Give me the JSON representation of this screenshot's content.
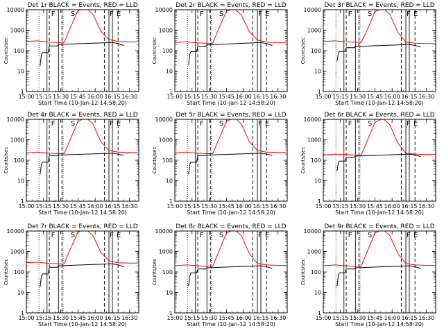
{
  "common": {
    "xlabel": "Start Time (10-Jan-12 14:58:20)",
    "ylabel": "Counts/sec",
    "xtick_labels": [
      "15:00",
      "15:15",
      "15:30",
      "15:45",
      "16:00",
      "16:15",
      "16:30"
    ],
    "ytick_labels": [
      "1",
      "10",
      "100",
      "1000",
      "10000"
    ],
    "markers": [
      "F",
      "S",
      "F",
      "E"
    ]
  },
  "colors": {
    "events": "#000000",
    "lld": "#ff0000",
    "axes": "#000000",
    "background": "#ffffff"
  },
  "chart_data": [
    {
      "type": "line",
      "title": "Det 1r BLACK = Events, RED = LLD",
      "xlabel": "Start Time (10-Jan-12 14:58:20)",
      "ylabel": "Counts/sec",
      "ylog": true,
      "xlim": [
        "15:00",
        "16:38"
      ],
      "ylim": [
        1,
        10000
      ],
      "series": [
        {
          "name": "Events",
          "color": "#000000",
          "x": [
            "15:12",
            "15:13",
            "15:14",
            "15:19",
            "15:20",
            "15:27",
            "15:28",
            "16:15",
            "16:20",
            "16:25"
          ],
          "y": [
            18,
            60,
            80,
            80,
            170,
            170,
            200,
            250,
            220,
            180
          ]
        },
        {
          "name": "LLD",
          "color": "#ff0000",
          "x": [
            "15:00",
            "15:10",
            "15:20",
            "15:28",
            "15:33",
            "15:37",
            "15:45",
            "15:52",
            "15:58",
            "16:05",
            "16:12",
            "16:20",
            "16:30",
            "16:37"
          ],
          "y": [
            280,
            300,
            260,
            250,
            250,
            900,
            9000,
            12000,
            6000,
            900,
            350,
            280,
            270,
            270
          ]
        }
      ]
    },
    {
      "type": "line",
      "title": "Det 2r BLACK = Events, RED = LLD",
      "xlabel": "Start Time (10-Jan-12 14:58:20)",
      "ylabel": "Counts/sec",
      "ylog": true,
      "xlim": [
        "15:00",
        "16:38"
      ],
      "ylim": [
        1,
        10000
      ],
      "series": [
        {
          "name": "Events",
          "color": "#000000",
          "x": [
            "15:12",
            "15:13",
            "15:14",
            "15:19",
            "15:20",
            "15:27",
            "15:28",
            "16:15",
            "16:20",
            "16:25"
          ],
          "y": [
            20,
            65,
            90,
            90,
            160,
            160,
            190,
            250,
            220,
            180
          ]
        },
        {
          "name": "LLD",
          "color": "#ff0000",
          "x": [
            "15:00",
            "15:10",
            "15:20",
            "15:28",
            "15:33",
            "15:37",
            "15:45",
            "15:52",
            "15:58",
            "16:05",
            "16:12",
            "16:20",
            "16:30",
            "16:37"
          ],
          "y": [
            250,
            270,
            240,
            230,
            230,
            800,
            8500,
            11000,
            5500,
            850,
            330,
            260,
            250,
            250
          ]
        }
      ]
    },
    {
      "type": "line",
      "title": "Det 3r BLACK = Events, RED = LLD",
      "xlabel": "Start Time (10-Jan-12 14:58:20)",
      "ylabel": "Counts/sec",
      "ylog": true,
      "xlim": [
        "15:00",
        "16:38"
      ],
      "ylim": [
        1,
        10000
      ],
      "series": [
        {
          "name": "Events",
          "color": "#000000",
          "x": [
            "15:12",
            "15:13",
            "15:14",
            "15:19",
            "15:20",
            "15:27",
            "15:28",
            "16:15",
            "16:20",
            "16:25"
          ],
          "y": [
            30,
            70,
            90,
            90,
            140,
            140,
            160,
            200,
            180,
            150
          ]
        },
        {
          "name": "LLD",
          "color": "#ff0000",
          "x": [
            "15:00",
            "15:10",
            "15:20",
            "15:28",
            "15:33",
            "15:37",
            "15:45",
            "15:52",
            "15:58",
            "16:05",
            "16:12",
            "16:20",
            "16:30",
            "16:37"
          ],
          "y": [
            280,
            300,
            270,
            260,
            250,
            700,
            8000,
            12000,
            6000,
            800,
            260,
            230,
            220,
            220
          ]
        }
      ]
    },
    {
      "type": "line",
      "title": "Det 4r BLACK = Events, RED = LLD",
      "xlabel": "Start Time (10-Jan-12 14:58:20)",
      "ylabel": "Counts/sec",
      "ylog": true,
      "xlim": [
        "15:00",
        "16:38"
      ],
      "ylim": [
        1,
        10000
      ],
      "series": [
        {
          "name": "Events",
          "color": "#000000",
          "x": [
            "15:12",
            "15:13",
            "15:14",
            "15:19",
            "15:20",
            "15:27",
            "15:28",
            "16:15",
            "16:20",
            "16:25"
          ],
          "y": [
            20,
            60,
            80,
            80,
            170,
            170,
            180,
            220,
            200,
            170
          ]
        },
        {
          "name": "LLD",
          "color": "#ff0000",
          "x": [
            "15:00",
            "15:10",
            "15:20",
            "15:28",
            "15:33",
            "15:37",
            "15:45",
            "15:52",
            "15:58",
            "16:05",
            "16:12",
            "16:20",
            "16:30",
            "16:37"
          ],
          "y": [
            230,
            250,
            220,
            210,
            210,
            700,
            8000,
            12000,
            6000,
            800,
            300,
            250,
            240,
            240
          ]
        }
      ]
    },
    {
      "type": "line",
      "title": "Det 5r BLACK = Events, RED = LLD",
      "xlabel": "Start Time (10-Jan-12 14:58:20)",
      "ylabel": "Counts/sec",
      "ylog": true,
      "xlim": [
        "15:00",
        "16:38"
      ],
      "ylim": [
        1,
        10000
      ],
      "series": [
        {
          "name": "Events",
          "color": "#000000",
          "x": [
            "15:12",
            "15:13",
            "15:14",
            "15:19",
            "15:20",
            "15:27",
            "15:28",
            "16:15",
            "16:20",
            "16:25"
          ],
          "y": [
            20,
            60,
            80,
            80,
            170,
            170,
            180,
            220,
            200,
            170
          ]
        },
        {
          "name": "LLD",
          "color": "#ff0000",
          "x": [
            "15:00",
            "15:10",
            "15:20",
            "15:28",
            "15:33",
            "15:37",
            "15:45",
            "15:52",
            "15:58",
            "16:05",
            "16:12",
            "16:20",
            "16:30",
            "16:37"
          ],
          "y": [
            230,
            250,
            220,
            210,
            210,
            700,
            8000,
            12000,
            6000,
            800,
            300,
            250,
            240,
            240
          ]
        }
      ]
    },
    {
      "type": "line",
      "title": "Det 6r BLACK = Events, RED = LLD",
      "xlabel": "Start Time (10-Jan-12 14:58:20)",
      "ylabel": "Counts/sec",
      "ylog": true,
      "xlim": [
        "15:00",
        "16:38"
      ],
      "ylim": [
        1,
        10000
      ],
      "series": [
        {
          "name": "Events",
          "color": "#000000",
          "x": [
            "15:12",
            "15:13",
            "15:14",
            "15:19",
            "15:20",
            "15:27",
            "15:28",
            "16:15",
            "16:20",
            "16:25"
          ],
          "y": [
            30,
            70,
            90,
            90,
            140,
            140,
            160,
            200,
            180,
            150
          ]
        },
        {
          "name": "LLD",
          "color": "#ff0000",
          "x": [
            "15:00",
            "15:10",
            "15:20",
            "15:28",
            "15:33",
            "15:37",
            "15:45",
            "15:52",
            "15:58",
            "16:05",
            "16:12",
            "16:20",
            "16:30",
            "16:37"
          ],
          "y": [
            180,
            200,
            190,
            180,
            180,
            600,
            7000,
            11000,
            5500,
            700,
            220,
            200,
            190,
            190
          ]
        }
      ]
    },
    {
      "type": "line",
      "title": "Det 7r BLACK = Events, RED = LLD",
      "xlabel": "Start Time (10-Jan-12 14:58:20)",
      "ylabel": "Counts/sec",
      "ylog": true,
      "xlim": [
        "15:00",
        "16:38"
      ],
      "ylim": [
        1,
        10000
      ],
      "series": [
        {
          "name": "Events",
          "color": "#000000",
          "x": [
            "15:12",
            "15:13",
            "15:14",
            "15:19",
            "15:20",
            "15:27",
            "15:28",
            "16:15",
            "16:20",
            "16:25"
          ],
          "y": [
            18,
            60,
            80,
            80,
            170,
            170,
            200,
            250,
            220,
            180
          ]
        },
        {
          "name": "LLD",
          "color": "#ff0000",
          "x": [
            "15:00",
            "15:10",
            "15:20",
            "15:28",
            "15:33",
            "15:37",
            "15:45",
            "15:52",
            "15:58",
            "16:05",
            "16:12",
            "16:20",
            "16:30",
            "16:37"
          ],
          "y": [
            280,
            300,
            260,
            250,
            250,
            900,
            9000,
            12000,
            6000,
            900,
            350,
            280,
            270,
            270
          ]
        }
      ]
    },
    {
      "type": "line",
      "title": "Det 8r BLACK = Events, RED = LLD",
      "xlabel": "Start Time (10-Jan-12 14:58:20)",
      "ylabel": "Counts/sec",
      "ylog": true,
      "xlim": [
        "15:00",
        "16:38"
      ],
      "ylim": [
        1,
        10000
      ],
      "series": [
        {
          "name": "Events",
          "color": "#000000",
          "x": [
            "15:12",
            "15:13",
            "15:14",
            "15:19",
            "15:20",
            "15:27",
            "15:28",
            "16:15",
            "16:20",
            "16:25"
          ],
          "y": [
            20,
            60,
            90,
            90,
            140,
            140,
            160,
            200,
            180,
            150
          ]
        },
        {
          "name": "LLD",
          "color": "#ff0000",
          "x": [
            "15:00",
            "15:10",
            "15:20",
            "15:28",
            "15:33",
            "15:37",
            "15:45",
            "15:52",
            "15:58",
            "16:05",
            "16:12",
            "16:20",
            "16:30",
            "16:37"
          ],
          "y": [
            200,
            220,
            200,
            190,
            190,
            650,
            8000,
            12000,
            6000,
            800,
            260,
            220,
            210,
            210
          ]
        }
      ]
    },
    {
      "type": "line",
      "title": "Det 9r BLACK = Events, RED = LLD",
      "xlabel": "Start Time (10-Jan-12 14:58:20)",
      "ylabel": "Counts/sec",
      "ylog": true,
      "xlim": [
        "15:00",
        "16:38"
      ],
      "ylim": [
        1,
        10000
      ],
      "series": [
        {
          "name": "Events",
          "color": "#000000",
          "x": [
            "15:12",
            "15:13",
            "15:14",
            "15:19",
            "15:20",
            "15:27",
            "15:28",
            "16:15",
            "16:20",
            "16:25"
          ],
          "y": [
            20,
            60,
            90,
            90,
            140,
            140,
            160,
            200,
            180,
            150
          ]
        },
        {
          "name": "LLD",
          "color": "#ff0000",
          "x": [
            "15:00",
            "15:10",
            "15:20",
            "15:28",
            "15:33",
            "15:37",
            "15:45",
            "15:52",
            "15:58",
            "16:05",
            "16:12",
            "16:20",
            "16:30",
            "16:37"
          ],
          "y": [
            200,
            220,
            200,
            190,
            190,
            650,
            8000,
            12000,
            6000,
            800,
            260,
            220,
            210,
            210
          ]
        }
      ]
    }
  ],
  "vertical_lines": {
    "dotted": [
      "15:11",
      "15:32"
    ],
    "solid": [
      "15:18",
      "15:28",
      "16:12",
      "16:15"
    ],
    "dashed": [
      "15:20",
      "15:31",
      "16:08",
      "16:20"
    ]
  },
  "marker_times": [
    "15:21",
    "15:38",
    "16:12",
    "16:18"
  ]
}
